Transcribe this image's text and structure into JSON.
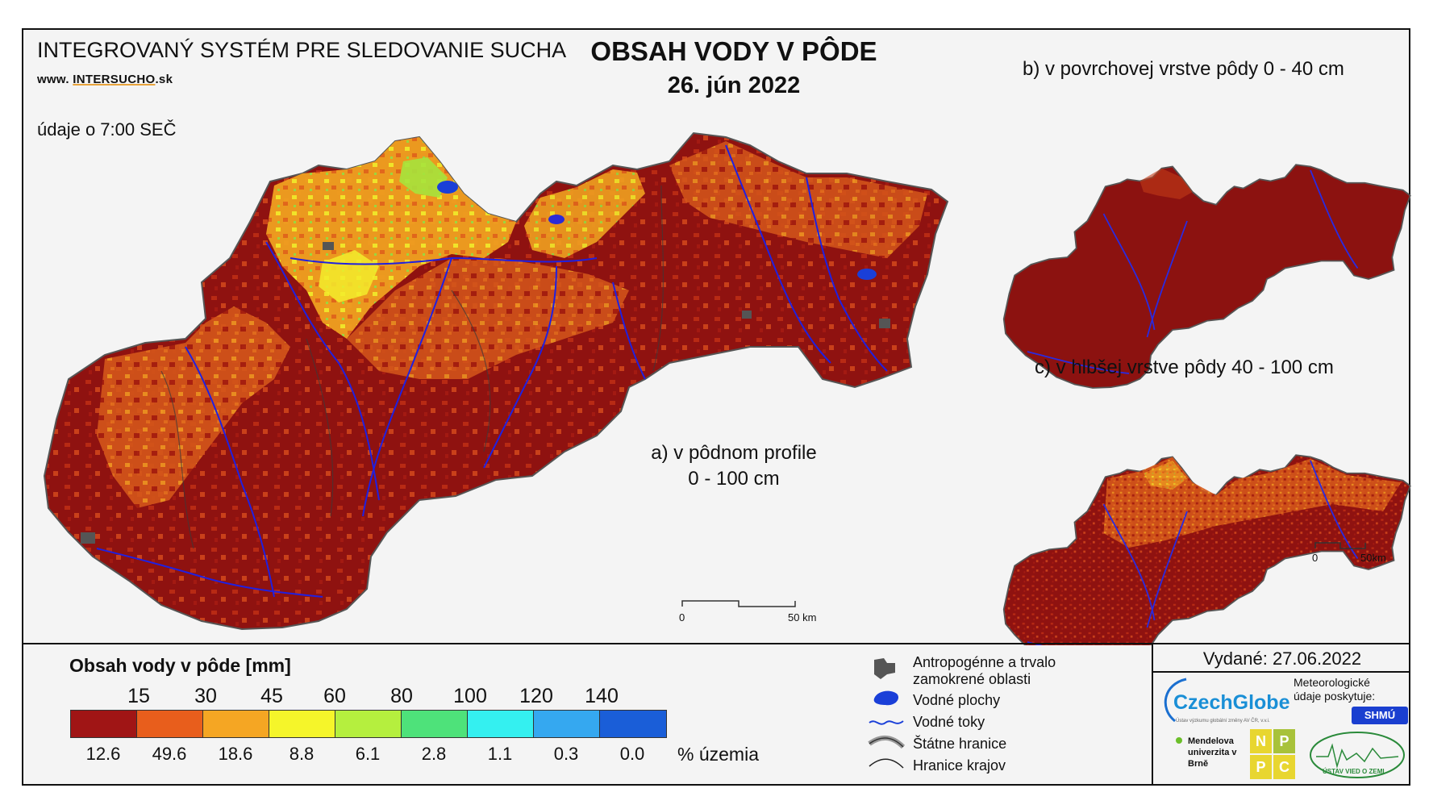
{
  "header": {
    "system_title": "INTEGROVANÝ SYSTÉM PRE SLEDOVANIE SUCHA",
    "website_prefix": "www.",
    "website_brand_a": "INTER",
    "website_brand_b": "SUCHO",
    "website_suffix": ".sk",
    "time_note": "údaje o 7:00 SEČ",
    "main_title": "OBSAH VODY V PÔDE",
    "date": "26. jún 2022"
  },
  "maps": {
    "a_label_line1": "a) v pôdnom profile",
    "a_label_line2": "0 - 100 cm",
    "b_label": "b) v povrchovej vrstve pôdy 0 - 40 cm",
    "c_label": "c) v hlbšej vrstve pôdy 40 - 100 cm",
    "scale_main": {
      "start": "0",
      "end": "50 km"
    },
    "scale_small": {
      "start": "0",
      "end": "50km"
    }
  },
  "legend": {
    "title": "Obsah vody v pôde  [mm]",
    "thresholds": [
      "15",
      "30",
      "45",
      "60",
      "80",
      "100",
      "120",
      "140"
    ],
    "colors": [
      "#a01515",
      "#e85e1c",
      "#f5a623",
      "#f5f52a",
      "#b5ef3e",
      "#4ee27a",
      "#34f0f0",
      "#35a8f0",
      "#1a5ed8"
    ],
    "percentages": [
      "12.6",
      "49.6",
      "18.6",
      "8.8",
      "6.1",
      "2.8",
      "1.1",
      "0.3",
      "0.0"
    ],
    "percent_unit": "% územia"
  },
  "key": {
    "anthropogenic": "Antropogénne a trvalo zamokrené oblasti",
    "anthropogenic_l1": "Antropogénne a trvalo",
    "anthropogenic_l2": "zamokrené oblasti",
    "water_bodies": "Vodné plochy",
    "rivers": "Vodné toky",
    "state_border": "Štátne hranice",
    "region_border": "Hranice krajov"
  },
  "credits": {
    "issued": "Vydané: 27.06.2022",
    "czechglobe": "CzechGlobe",
    "czechglobe_sub": "Ústav výzkumu globální změny AV ČR, v.v.i.",
    "meteo": "Meteorologické údaje poskytuje:",
    "shmu": "SHMÚ",
    "mendel": "Mendelova univerzita v Brně",
    "nppc": [
      "N",
      "P",
      "P",
      "C"
    ],
    "uvz": "ÚSTAV VIED O ZEMI"
  }
}
